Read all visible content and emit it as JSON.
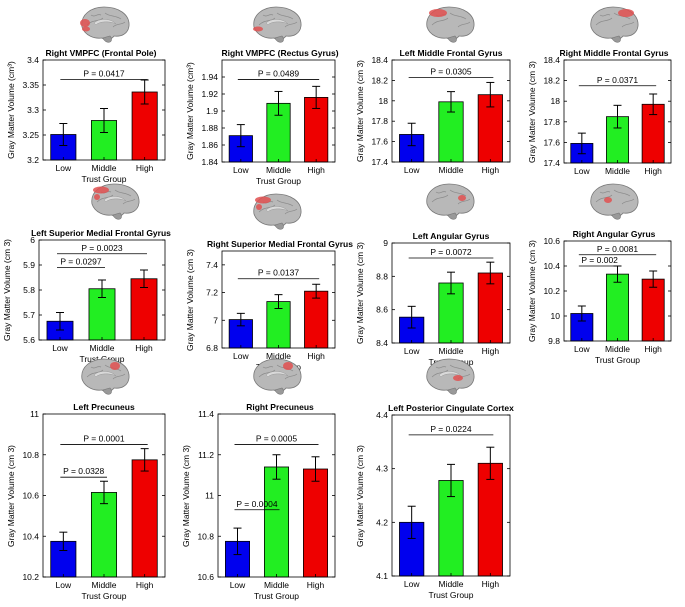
{
  "colors": {
    "low": "#0000ee",
    "middle": "#22ee22",
    "high": "#ee0000",
    "brain": "#b8b8b8",
    "highlight": "#e05050"
  },
  "chart_data": [
    {
      "type": "bar",
      "title": "Right VMPFC (Frontal Pole)",
      "ylabel": "Gray Matter Volume (cm³)",
      "xlabel": "Trust Group",
      "categories": [
        "Low",
        "Middle",
        "High"
      ],
      "values": [
        3.251,
        3.279,
        3.336
      ],
      "errors": [
        0.022,
        0.024,
        0.024
      ],
      "ylim": [
        3.2,
        3.4
      ],
      "yticks": [
        3.2,
        3.25,
        3.3,
        3.35,
        3.4
      ],
      "ytick_labels": [
        "3.2",
        "3.25",
        "3.3",
        "3.35",
        "3.4"
      ],
      "annotations": [
        {
          "text": "P = 0.0417",
          "from": 0,
          "to": 2,
          "y": 3.361
        }
      ]
    },
    {
      "type": "bar",
      "title": "Right VMPFC (Rectus Gyrus)",
      "ylabel": "Gray Matter Volume (cm³)",
      "xlabel": "Trust Group",
      "categories": [
        "Low",
        "Middle",
        "High"
      ],
      "values": [
        1.871,
        1.909,
        1.916
      ],
      "errors": [
        0.013,
        0.014,
        0.013
      ],
      "ylim": [
        1.84,
        1.96
      ],
      "yticks": [
        1.84,
        1.86,
        1.88,
        1.9,
        1.92,
        1.94
      ],
      "ytick_labels": [
        "1.84",
        "1.86",
        "1.88",
        "1.9",
        "1.92",
        "1.94"
      ],
      "annotations": [
        {
          "text": "P = 0.0489",
          "from": 0,
          "to": 2,
          "y": 1.937
        }
      ]
    },
    {
      "type": "bar",
      "title": "Left Middle Frontal Gyrus",
      "ylabel": "Gray Matter Volume (cm 3)",
      "xlabel": "",
      "categories": [
        "Low",
        "Middle",
        "High"
      ],
      "values": [
        17.67,
        17.99,
        18.06
      ],
      "errors": [
        0.11,
        0.1,
        0.12
      ],
      "ylim": [
        17.4,
        18.4
      ],
      "yticks": [
        17.4,
        17.6,
        17.8,
        18,
        18.2,
        18.4
      ],
      "ytick_labels": [
        "17.4",
        "17.6",
        "17.8",
        "18",
        "18.2",
        "18.4"
      ],
      "annotations": [
        {
          "text": "P = 0.0305",
          "from": 0,
          "to": 2,
          "y": 18.23
        }
      ]
    },
    {
      "type": "bar",
      "title": "Right Middle Frontal Gyrus",
      "ylabel": "Gray Matter Volume (cm 3)",
      "xlabel": "",
      "categories": [
        "Low",
        "Middle",
        "High"
      ],
      "values": [
        17.59,
        17.85,
        17.97
      ],
      "errors": [
        0.1,
        0.11,
        0.1
      ],
      "ylim": [
        17.4,
        18.4
      ],
      "yticks": [
        17.4,
        17.6,
        17.8,
        18,
        18.2,
        18.4
      ],
      "ytick_labels": [
        "17.4",
        "17.6",
        "17.8",
        "18",
        "18.2",
        "18.4"
      ],
      "annotations": [
        {
          "text": "P = 0.0371",
          "from": 0,
          "to": 2,
          "y": 18.15
        }
      ]
    },
    {
      "type": "bar",
      "title": "Left Superior Medial Frontal Gyrus",
      "ylabel": "Gray Matter Volume (cm 3)",
      "xlabel": "Trust Group",
      "categories": [
        "Low",
        "Middle",
        "High"
      ],
      "values": [
        5.675,
        5.805,
        5.845
      ],
      "errors": [
        0.035,
        0.035,
        0.035
      ],
      "ylim": [
        5.6,
        6.0
      ],
      "yticks": [
        5.6,
        5.7,
        5.8,
        5.9,
        6.0
      ],
      "ytick_labels": [
        "5.6",
        "5.7",
        "5.8",
        "5.9",
        "6"
      ],
      "annotations": [
        {
          "text": "P = 0.0297",
          "from": 0,
          "to": 1,
          "y": 5.89
        },
        {
          "text": "P = 0.0023",
          "from": 0,
          "to": 2,
          "y": 5.945
        }
      ]
    },
    {
      "type": "bar",
      "title": "Right Superior Medial Frontal Gyrus",
      "ylabel": "Gray Matter Volume (cm 3)",
      "xlabel": "Trust Group",
      "categories": [
        "Low",
        "Middle",
        "High"
      ],
      "values": [
        7.005,
        7.135,
        7.21
      ],
      "errors": [
        0.045,
        0.05,
        0.05
      ],
      "ylim": [
        6.8,
        7.5
      ],
      "yticks": [
        6.8,
        7.0,
        7.2,
        7.4
      ],
      "ytick_labels": [
        "6.8",
        "7",
        "7.2",
        "7.4"
      ],
      "annotations": [
        {
          "text": "P = 0.0137",
          "from": 0,
          "to": 2,
          "y": 7.3
        }
      ]
    },
    {
      "type": "bar",
      "title": "Left Angular Gyrus",
      "ylabel": "Gray Matter Volume (cm 3)",
      "xlabel": "Trust Group",
      "categories": [
        "Low",
        "Middle",
        "High"
      ],
      "values": [
        8.555,
        8.76,
        8.82
      ],
      "errors": [
        0.065,
        0.065,
        0.065
      ],
      "ylim": [
        8.4,
        9.0
      ],
      "yticks": [
        8.4,
        8.6,
        8.8,
        9.0
      ],
      "ytick_labels": [
        "8.4",
        "8.6",
        "8.8",
        "9"
      ],
      "annotations": [
        {
          "text": "P = 0.0072",
          "from": 0,
          "to": 2,
          "y": 8.91
        }
      ]
    },
    {
      "type": "bar",
      "title": "Right Angular Gyrus",
      "ylabel": "Gray Matter Volume (cm 3)",
      "xlabel": "Trust Group",
      "categories": [
        "Low",
        "Middle",
        "High"
      ],
      "values": [
        10.02,
        10.335,
        10.295
      ],
      "errors": [
        0.06,
        0.065,
        0.065
      ],
      "ylim": [
        9.8,
        10.6
      ],
      "yticks": [
        9.8,
        10.0,
        10.2,
        10.4,
        10.6
      ],
      "ytick_labels": [
        "9.8",
        "10",
        "10.2",
        "10.4",
        "10.6"
      ],
      "annotations": [
        {
          "text": "P = 0.002",
          "from": 0,
          "to": 1,
          "y": 10.4
        },
        {
          "text": "P = 0.0081",
          "from": 0,
          "to": 2,
          "y": 10.49
        }
      ]
    },
    {
      "type": "bar",
      "title": "Left Precuneus",
      "ylabel": "Gray Matter Volume (cm 3)",
      "xlabel": "Trust Group",
      "categories": [
        "Low",
        "Middle",
        "High"
      ],
      "values": [
        10.375,
        10.615,
        10.775
      ],
      "errors": [
        0.045,
        0.055,
        0.055
      ],
      "ylim": [
        10.2,
        11.0
      ],
      "yticks": [
        10.2,
        10.4,
        10.6,
        10.8,
        11.0
      ],
      "ytick_labels": [
        "10.2",
        "10.4",
        "10.6",
        "10.8",
        "11"
      ],
      "annotations": [
        {
          "text": "P = 0.0328",
          "from": 0,
          "to": 1,
          "y": 10.69
        },
        {
          "text": "P = 0.0001",
          "from": 0,
          "to": 2,
          "y": 10.85
        }
      ]
    },
    {
      "type": "bar",
      "title": "Right Precuneus",
      "ylabel": "Gray Matter Volume (cm 3)",
      "xlabel": "Trust Group",
      "categories": [
        "Low",
        "Middle",
        "High"
      ],
      "values": [
        10.775,
        11.14,
        11.13
      ],
      "errors": [
        0.065,
        0.06,
        0.06
      ],
      "ylim": [
        10.6,
        11.4
      ],
      "yticks": [
        10.6,
        10.8,
        11.0,
        11.2,
        11.4
      ],
      "ytick_labels": [
        "10.6",
        "10.8",
        "11",
        "11.2",
        "11.4"
      ],
      "annotations": [
        {
          "text": "P = 0.0004",
          "from": 0,
          "to": 1,
          "y": 10.93
        },
        {
          "text": "P = 0.0005",
          "from": 0,
          "to": 2,
          "y": 11.25
        }
      ]
    },
    {
      "type": "bar",
      "title": "Left Posterior Cingulate Cortex",
      "ylabel": "Gray Matter Volume (cm 3)",
      "xlabel": "Trust Group",
      "categories": [
        "Low",
        "Middle",
        "High"
      ],
      "values": [
        4.2,
        4.278,
        4.31
      ],
      "errors": [
        0.03,
        0.03,
        0.03
      ],
      "ylim": [
        4.1,
        4.4
      ],
      "yticks": [
        4.1,
        4.2,
        4.3,
        4.4
      ],
      "ytick_labels": [
        "4.1",
        "4.2",
        "4.3",
        "4.4"
      ],
      "annotations": [
        {
          "text": "P = 0.0224",
          "from": 0,
          "to": 2,
          "y": 4.363
        }
      ]
    }
  ],
  "brain_views": [
    "medial",
    "medial",
    "lateral",
    "lateral",
    "medial",
    "medial",
    "lateral",
    "lateral",
    "medial",
    "medial",
    "medial"
  ]
}
